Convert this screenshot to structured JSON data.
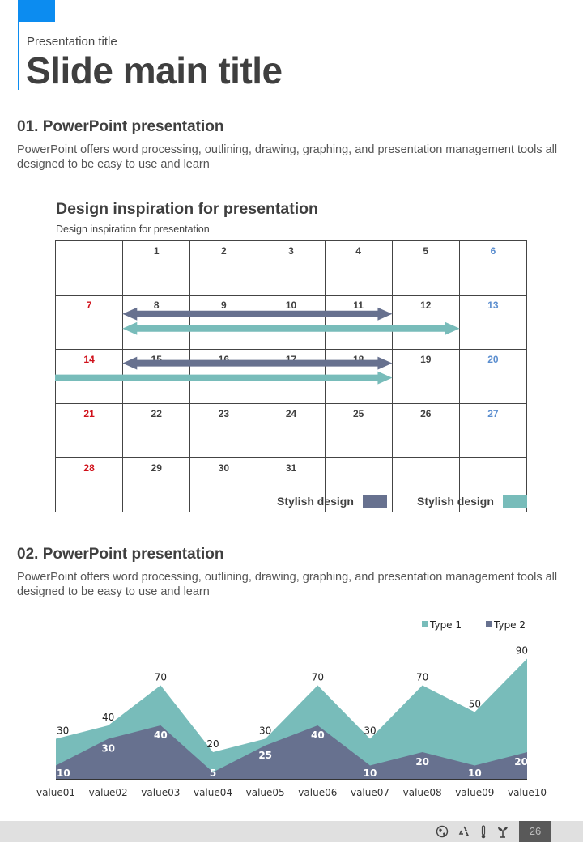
{
  "header": {
    "presentation_title": "Presentation title",
    "main_title": "Slide main title"
  },
  "section1": {
    "title": "01. PowerPoint presentation",
    "body": "PowerPoint offers word processing, outlining, drawing, graphing, and presentation management tools all designed to be easy to use and learn"
  },
  "calendar": {
    "title": "Design inspiration for presentation",
    "subtitle": "Design inspiration for presentation",
    "weeks": [
      [
        "",
        "1",
        "2",
        "3",
        "4",
        "5",
        "6"
      ],
      [
        "7",
        "8",
        "9",
        "10",
        "11",
        "12",
        "13"
      ],
      [
        "14",
        "15",
        "16",
        "17",
        "18",
        "19",
        "20"
      ],
      [
        "21",
        "22",
        "23",
        "24",
        "25",
        "26",
        "27"
      ],
      [
        "28",
        "29",
        "30",
        "31",
        "",
        "",
        ""
      ]
    ],
    "legend": [
      {
        "label": "Stylish design",
        "color": "#67718f"
      },
      {
        "label": "Stylish design",
        "color": "#78bcba"
      }
    ],
    "spans": [
      {
        "week": 1,
        "from_day": 8,
        "to_day": 11,
        "style": "double",
        "color": "#67718f",
        "row": 0
      },
      {
        "week": 1,
        "from_day": 8,
        "to_day": 12,
        "style": "double",
        "color": "#78bcba",
        "row": 1
      },
      {
        "week": 2,
        "from_day": 15,
        "to_day": 18,
        "style": "double",
        "color": "#67718f",
        "row": 0
      },
      {
        "week": 2,
        "from_day": 14,
        "to_day": 18,
        "style": "right-continued",
        "color": "#78bcba",
        "row": 1
      }
    ]
  },
  "section2": {
    "title": "02. PowerPoint presentation",
    "body": "PowerPoint offers word processing, outlining, drawing, graphing, and presentation management tools all designed to be easy to use and learn"
  },
  "chart_data": {
    "type": "area",
    "categories": [
      "value01",
      "value02",
      "value03",
      "value04",
      "value05",
      "value06",
      "value07",
      "value08",
      "value09",
      "value10"
    ],
    "series": [
      {
        "name": "Type 1",
        "color": "#78bcba",
        "values": [
          30,
          40,
          70,
          20,
          30,
          70,
          30,
          70,
          50,
          90
        ]
      },
      {
        "name": "Type 2",
        "color": "#67718f",
        "values": [
          10,
          30,
          40,
          5,
          25,
          40,
          10,
          20,
          10,
          20
        ]
      }
    ],
    "title": "",
    "xlabel": "",
    "ylabel": "",
    "ylim": [
      0,
      100
    ],
    "grid": false,
    "legend_position": "top-right",
    "data_labels": true
  },
  "footer": {
    "icons": [
      "globe-icon",
      "recycle-icon",
      "thermometer-icon",
      "sprout-icon"
    ],
    "page_number": "26"
  }
}
